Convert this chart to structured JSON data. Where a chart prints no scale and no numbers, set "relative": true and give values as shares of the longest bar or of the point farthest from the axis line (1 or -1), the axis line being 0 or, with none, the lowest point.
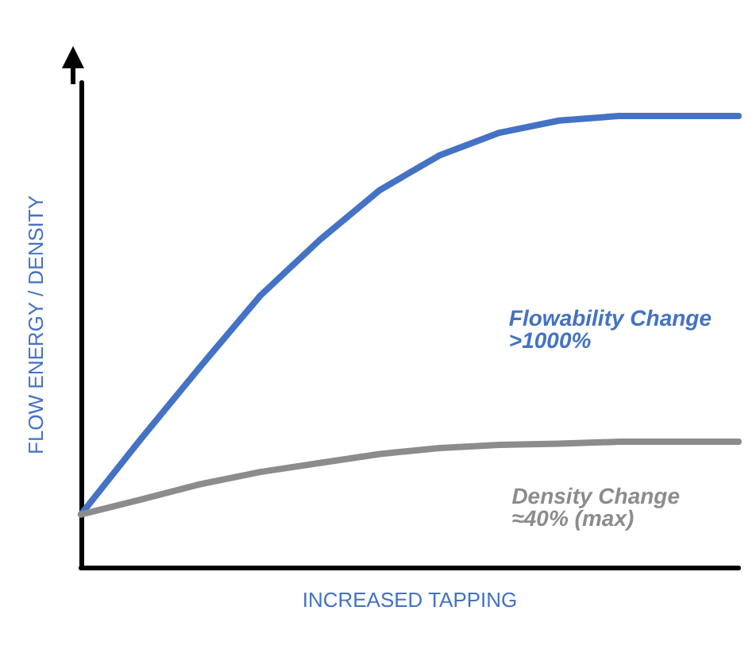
{
  "chart_data": {
    "type": "line",
    "relative": true,
    "xlabel": "INCREASED TAPPING",
    "ylabel": "FLOW ENERGY / DENSITY",
    "categories": [
      null,
      null,
      null,
      null,
      null,
      null,
      null,
      null,
      null,
      null,
      null,
      null
    ],
    "series": [
      {
        "color": "#4472c4",
        "values": [
          0.117,
          0.284,
          0.445,
          0.602,
          0.726,
          0.836,
          0.913,
          0.963,
          0.99,
          1,
          1,
          1
        ]
      },
      {
        "color": "#8c8c8c",
        "values": [
          0.117,
          0.15,
          0.184,
          0.211,
          0.231,
          0.251,
          0.264,
          0.271,
          0.274,
          0.278,
          0.278,
          0.278
        ]
      }
    ],
    "annotations": [
      "Flowability Change\n>1000%",
      "Density Change\n≈40% (max)"
    ],
    "marker": "none",
    "line_style": "solid"
  }
}
